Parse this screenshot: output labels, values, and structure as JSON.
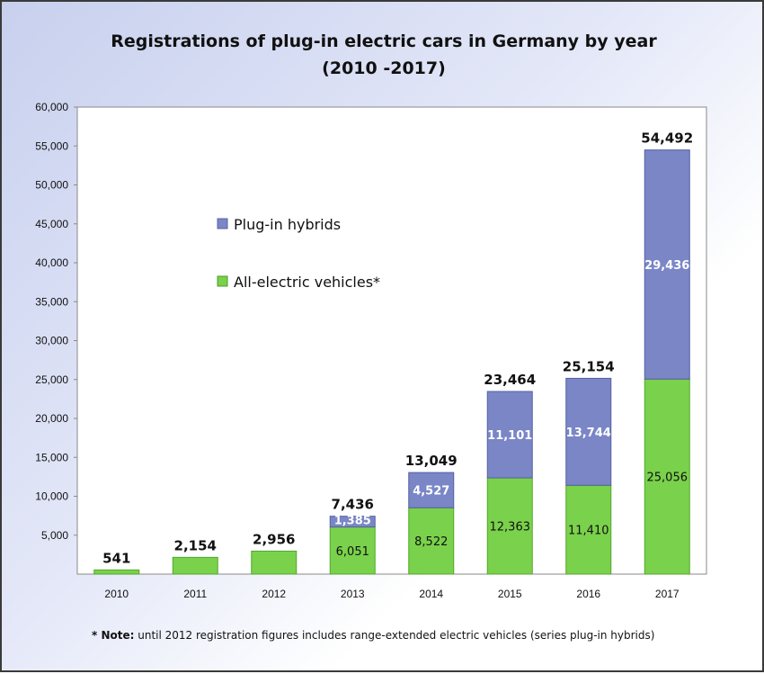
{
  "chart_data": {
    "type": "bar",
    "stacked": true,
    "title": "Registrations of plug-in electric cars in Germany by year",
    "subtitle": "(2010 -2017)",
    "xlabel": "",
    "ylabel": "",
    "ylim": [
      0,
      60000
    ],
    "yticks": [
      "60,000",
      "55,000",
      "50,000",
      "45,000",
      "40,000",
      "35,000",
      "30,000",
      "25,000",
      "20,000",
      "15,000",
      "10,000",
      "5,000"
    ],
    "categories": [
      "2010",
      "2011",
      "2012",
      "2013",
      "2014",
      "2015",
      "2016",
      "2017"
    ],
    "series": [
      {
        "name": "All-electric vehicles*",
        "color": "#7ad14b",
        "values": [
          541,
          2154,
          2956,
          6051,
          8522,
          12363,
          11410,
          25056
        ],
        "labels": [
          "",
          "",
          "",
          "6,051",
          "8,522",
          "12,363",
          "11,410",
          "25,056"
        ]
      },
      {
        "name": "Plug-in hybrids",
        "color": "#7a86c6",
        "values": [
          0,
          0,
          0,
          1385,
          4527,
          11101,
          13744,
          29436
        ],
        "labels": [
          "",
          "",
          "",
          "1,385",
          "4,527",
          "11,101",
          "13,744",
          "29,436"
        ]
      }
    ],
    "totals": [
      "541",
      "2,154",
      "2,956",
      "7,436",
      "13,049",
      "23,464",
      "25,154",
      "54,492"
    ],
    "legend_position": "upper-left inside plot",
    "grid": false
  },
  "note": {
    "prefix": "* Note:",
    "text": " until 2012 registration figures includes range-extended electric vehicles (series plug-in hybrids)"
  }
}
